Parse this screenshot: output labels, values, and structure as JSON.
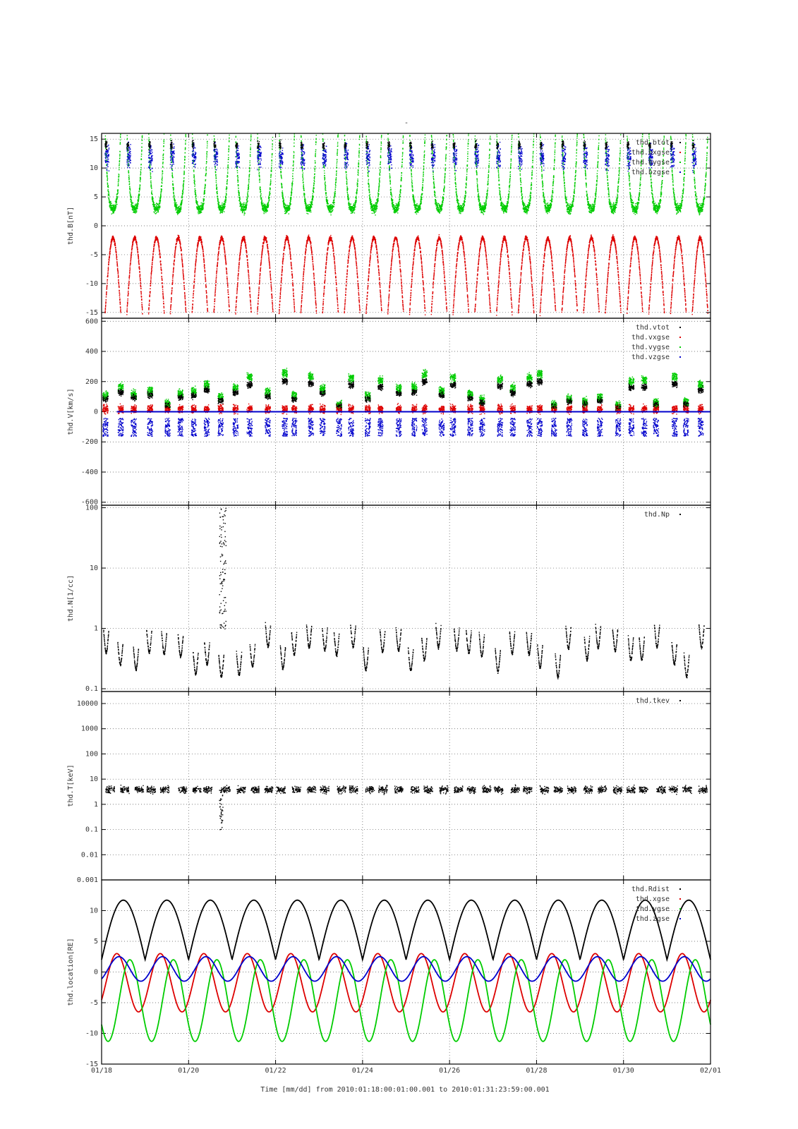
{
  "figure": {
    "top_mark": "-",
    "x_axis_label": "Time [mm/dd]  from 2010:01:18:00:01:00.001  to  2010:01:31:23:59:00.001"
  },
  "chart_data": [
    {
      "type": "scatter",
      "ylabel": "thd.B[nT]",
      "xlim": [
        0,
        14
      ],
      "ylim": [
        -16,
        16
      ],
      "yscale": "linear",
      "yticks": [
        -15,
        -10,
        -5,
        0,
        5,
        10,
        15
      ],
      "ytick_labels": [
        "-15",
        "-10",
        "-5",
        "0",
        "5",
        "10",
        "15"
      ],
      "grid": true,
      "legend_position": "top-right",
      "series": [
        {
          "name": "thd.btot",
          "color": "#000000"
        },
        {
          "name": "thd.bxgse",
          "color": "#dd0000"
        },
        {
          "name": "thd.bygse",
          "color": "#00cc00"
        },
        {
          "name": "thd.bzgse",
          "color": "#0000cc"
        }
      ]
    },
    {
      "type": "scatter",
      "ylabel": "thd.V[km/s]",
      "xlim": [
        0,
        14
      ],
      "ylim": [
        -620,
        620
      ],
      "yscale": "linear",
      "yticks": [
        -600,
        -400,
        -200,
        0,
        200,
        400,
        600
      ],
      "ytick_labels": [
        "-600",
        "-400",
        "-200",
        "0",
        "200",
        "400",
        "600"
      ],
      "grid": true,
      "legend_position": "top-right",
      "series": [
        {
          "name": "thd.vtot",
          "color": "#000000"
        },
        {
          "name": "thd.vxgse",
          "color": "#dd0000"
        },
        {
          "name": "thd.vygse",
          "color": "#00cc00"
        },
        {
          "name": "thd.vzgse",
          "color": "#0000cc"
        }
      ]
    },
    {
      "type": "scatter",
      "ylabel": "thd.N[1/cc]",
      "xlim": [
        0,
        14
      ],
      "ylim": [
        0.09,
        110
      ],
      "yscale": "log",
      "yticks": [
        0.1,
        1,
        10,
        100
      ],
      "ytick_labels": [
        "0.1",
        "1",
        "10",
        "100"
      ],
      "grid": true,
      "legend_position": "top-right",
      "series": [
        {
          "name": "thd.Np",
          "color": "#000000"
        }
      ]
    },
    {
      "type": "scatter",
      "ylabel": "thd.T[keV]",
      "xlim": [
        0,
        14
      ],
      "ylim": [
        0.001,
        30000
      ],
      "yscale": "log",
      "yticks": [
        0.001,
        0.01,
        0.1,
        1,
        10,
        100,
        1000,
        10000
      ],
      "ytick_labels": [
        "0.001",
        "0.01",
        "0.1",
        "1",
        "10",
        "100",
        "1000",
        "10000"
      ],
      "grid": true,
      "legend_position": "top-right",
      "series": [
        {
          "name": "thd.tkev",
          "color": "#000000"
        }
      ]
    },
    {
      "type": "line",
      "ylabel": "thd.location[RE]",
      "xlim": [
        0,
        14
      ],
      "ylim": [
        -15,
        15
      ],
      "yscale": "linear",
      "yticks": [
        -15,
        -10,
        -5,
        0,
        5,
        10
      ],
      "ytick_labels": [
        "-15",
        "-10",
        "-5",
        "0",
        "5",
        "10"
      ],
      "grid": true,
      "legend_position": "top-right",
      "orbit_period_days": 1,
      "series": [
        {
          "name": "thd.Rdist",
          "color": "#000000",
          "min": 2,
          "max": 11.7
        },
        {
          "name": "thd.xgse",
          "color": "#dd0000",
          "min": -6.5,
          "max": 3
        },
        {
          "name": "thd.ygse",
          "color": "#00cc00",
          "min": -11.3,
          "max": 2
        },
        {
          "name": "thd.zgse",
          "color": "#0000cc",
          "min": -1.5,
          "max": 2.5
        }
      ]
    }
  ],
  "x_ticks": {
    "values": [
      0,
      2,
      4,
      6,
      8,
      10,
      12,
      14
    ],
    "labels": [
      "01/18",
      "01/20",
      "01/22",
      "01/24",
      "01/26",
      "01/28",
      "01/30",
      "02/01"
    ]
  }
}
